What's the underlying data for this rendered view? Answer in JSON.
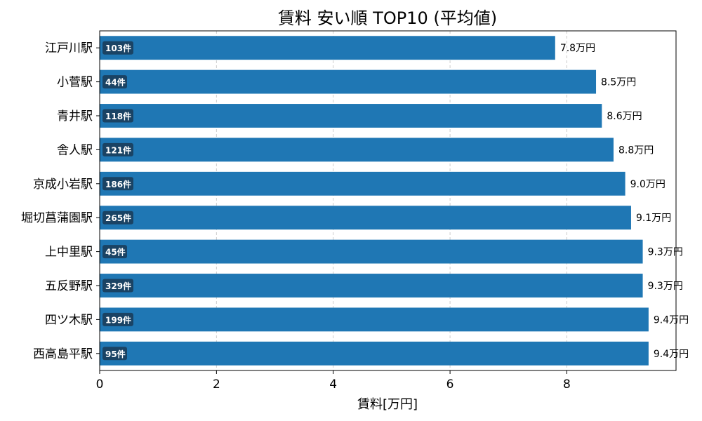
{
  "chart_data": {
    "type": "bar",
    "orientation": "horizontal",
    "title": "賃料 安い順 TOP10 (平均値)",
    "xlabel": "賃料[万円]",
    "ylabel": "",
    "xlim": [
      0,
      9.87
    ],
    "xticks": [
      0,
      2,
      4,
      6,
      8
    ],
    "grid": "x",
    "categories": [
      "江戸川駅",
      "小菅駅",
      "青井駅",
      "舎人駅",
      "京成小岩駅",
      "堀切菖蒲園駅",
      "上中里駅",
      "五反野駅",
      "四ツ木駅",
      "西高島平駅"
    ],
    "values": [
      7.8,
      8.5,
      8.6,
      8.8,
      9.0,
      9.1,
      9.3,
      9.3,
      9.4,
      9.4
    ],
    "value_labels": [
      "7.8万円",
      "8.5万円",
      "8.6万円",
      "8.8万円",
      "9.0万円",
      "9.1万円",
      "9.3万円",
      "9.3万円",
      "9.4万円",
      "9.4万円"
    ],
    "count_labels": [
      "103件",
      "44件",
      "118件",
      "121件",
      "186件",
      "265件",
      "45件",
      "329件",
      "199件",
      "95件"
    ],
    "colors": {
      "bar": "#1f77b4",
      "badge": "#1a3a56",
      "grid": "#cccccc"
    }
  }
}
